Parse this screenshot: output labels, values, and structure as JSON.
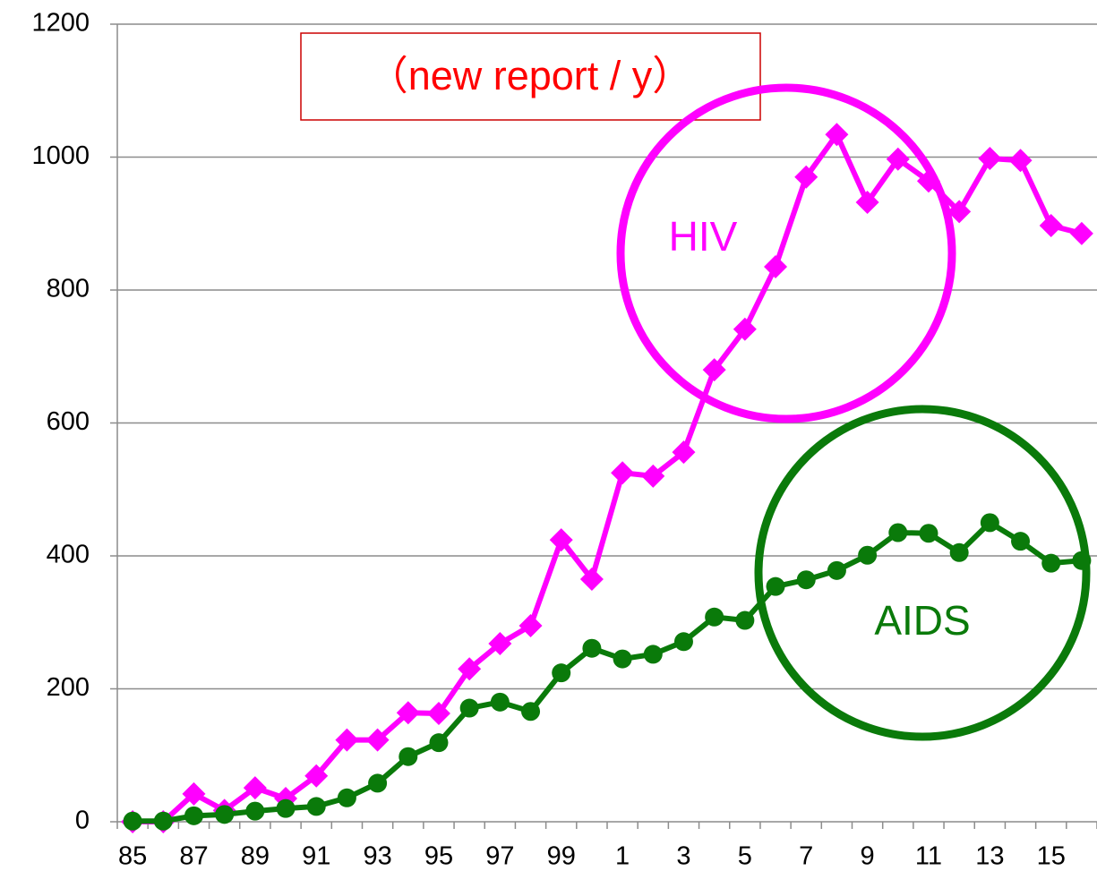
{
  "chart_data": {
    "type": "line",
    "categories": [
      "85",
      null,
      "87",
      null,
      "89",
      null,
      "91",
      null,
      "93",
      null,
      "95",
      null,
      "97",
      null,
      "99",
      null,
      "1",
      null,
      "3",
      null,
      "5",
      null,
      "7",
      null,
      "9",
      null,
      "11",
      null,
      "13",
      null,
      "15",
      null
    ],
    "series": [
      {
        "name": "HIV",
        "color": "#ff00ff",
        "marker": "diamond",
        "values": [
          0,
          0,
          42,
          17,
          51,
          35,
          69,
          123,
          123,
          164,
          163,
          230,
          268,
          295,
          424,
          365,
          525,
          520,
          556,
          680,
          741,
          835,
          970,
          1034,
          932,
          997,
          964,
          918,
          998,
          995,
          897,
          885
        ]
      },
      {
        "name": "AIDS",
        "color": "#0a7a0a",
        "marker": "circle",
        "values": [
          1,
          1,
          9,
          11,
          16,
          20,
          23,
          36,
          58,
          98,
          119,
          171,
          180,
          166,
          224,
          261,
          245,
          252,
          271,
          308,
          303,
          354,
          364,
          378,
          401,
          435,
          434,
          405,
          450,
          422,
          389,
          393
        ]
      }
    ],
    "ylim": [
      0,
      1200
    ],
    "yticks": [
      0,
      200,
      400,
      600,
      800,
      1000,
      1200
    ],
    "grid": true,
    "annotations": [
      {
        "text": "（new report / y）",
        "color": "#ff0000"
      },
      {
        "text": "HIV",
        "color": "#ff00ff"
      },
      {
        "text": "AIDS",
        "color": "#0a7a0a"
      }
    ]
  }
}
